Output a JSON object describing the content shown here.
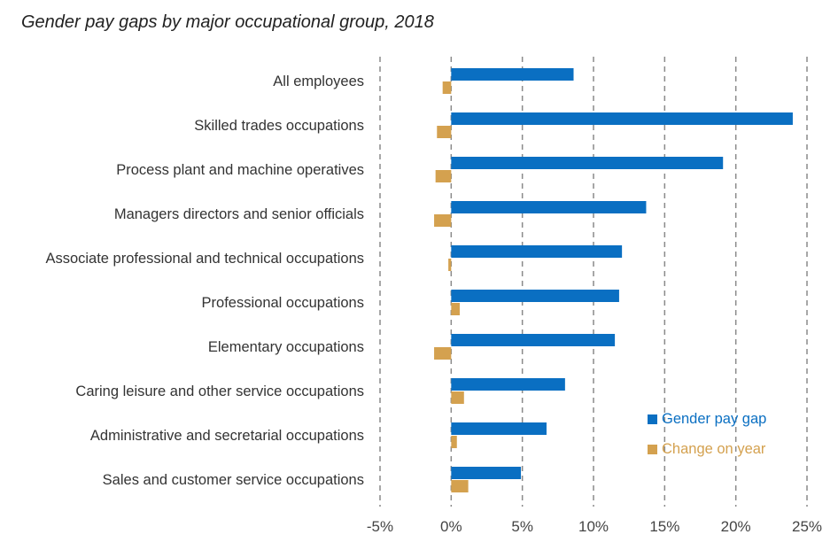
{
  "chart_data": {
    "type": "bar",
    "orientation": "horizontal",
    "title": "Gender pay gaps by major occupational group, 2018",
    "categories": [
      "All employees",
      "Skilled trades occupations",
      "Process plant and machine operatives",
      "Managers directors and senior officials",
      "Associate professional and technical occupations",
      "Professional occupations",
      "Elementary occupations",
      "Caring leisure and other service occupations",
      "Administrative and secretarial occupations",
      "Sales and customer service occupations"
    ],
    "series": [
      {
        "name": "Gender pay gap",
        "color": "#0a6fc2",
        "values": [
          8.6,
          24.0,
          19.1,
          13.7,
          12.0,
          11.8,
          11.5,
          8.0,
          6.7,
          4.9
        ]
      },
      {
        "name": "Change on year",
        "color": "#d4a14f",
        "values": [
          -0.6,
          -1.0,
          -1.1,
          -1.2,
          -0.2,
          0.6,
          -1.2,
          0.9,
          0.4,
          1.2
        ]
      }
    ],
    "xlim": [
      -5,
      25
    ],
    "xticks": [
      -5,
      0,
      5,
      10,
      15,
      20,
      25
    ],
    "xtick_labels": [
      "-5%",
      "0%",
      "5%",
      "10%",
      "15%",
      "20%",
      "25%"
    ],
    "grid": "vertical dashed",
    "legend_position": "bottom-right"
  }
}
